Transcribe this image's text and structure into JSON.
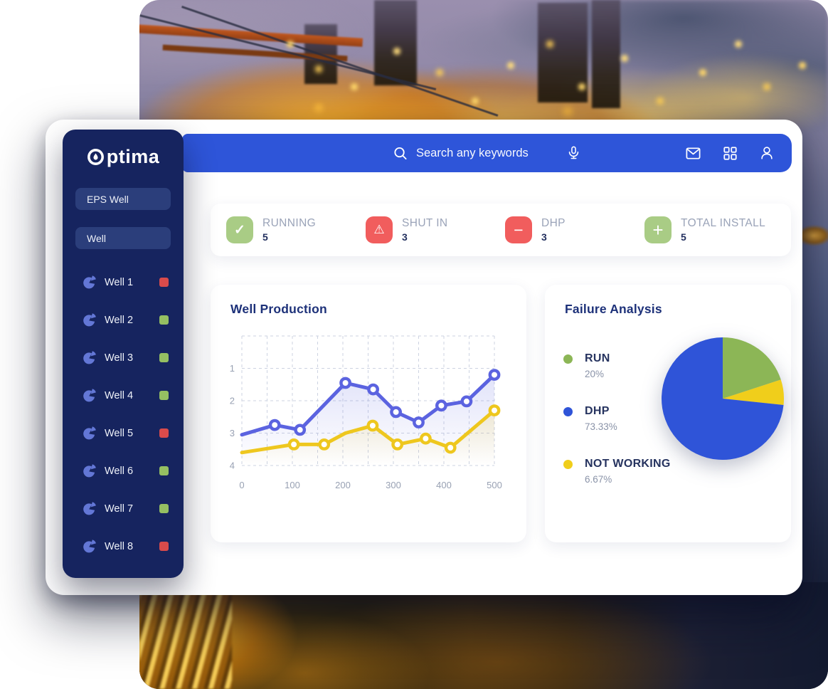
{
  "app": {
    "brand": "optima"
  },
  "topbar": {
    "search_placeholder": "Search any keywords",
    "icons": [
      "search",
      "microphone",
      "mail",
      "apps-grid",
      "profile"
    ]
  },
  "sidebar": {
    "nav": [
      {
        "label": "EPS Well"
      },
      {
        "label": "Well"
      }
    ],
    "wells": [
      {
        "label": "Well 1",
        "status": "red"
      },
      {
        "label": "Well 2",
        "status": "green"
      },
      {
        "label": "Well 3",
        "status": "green"
      },
      {
        "label": "Well 4",
        "status": "green"
      },
      {
        "label": "Well 5",
        "status": "red"
      },
      {
        "label": "Well 6",
        "status": "green"
      },
      {
        "label": "Well 7",
        "status": "green"
      },
      {
        "label": "Well 8",
        "status": "red"
      }
    ]
  },
  "stats": [
    {
      "label": "RUNNING",
      "value": "5",
      "icon": "check",
      "color": "green"
    },
    {
      "label": "SHUT IN",
      "value": "3",
      "icon": "warning",
      "color": "red"
    },
    {
      "label": "DHP",
      "value": "3",
      "icon": "minus",
      "color": "red"
    },
    {
      "label": "TOTAL INSTALL",
      "value": "5",
      "icon": "plus",
      "color": "green"
    }
  ],
  "colors": {
    "accent_blue": "#2e55d9",
    "sidebar_navy": "#16245f",
    "stat_green": "#a9cc85",
    "stat_red": "#f15d5d",
    "status_green": "#95bf62",
    "status_red": "#d94b4b",
    "line_blue": "#5b63e0",
    "line_yellow": "#eec71e",
    "pie_green": "#8cb656",
    "pie_blue": "#2f54d8",
    "pie_yellow": "#f0ce1b"
  },
  "chart_data": [
    {
      "type": "line",
      "title": "Well Production",
      "x_ticks": [
        0,
        100,
        200,
        300,
        400,
        500
      ],
      "y_ticks": [
        1,
        2,
        3,
        4
      ],
      "x_range": [
        0,
        500
      ],
      "y_range": [
        0,
        4
      ],
      "y_inverted": true,
      "grid": "dashed",
      "series": [
        {
          "name": "series-blue",
          "color": "#5b63e0",
          "points": [
            [
              0,
              3.05,
              0
            ],
            [
              65,
              2.75,
              1
            ],
            [
              115,
              2.9,
              1
            ],
            [
              205,
              1.45,
              1
            ],
            [
              260,
              1.65,
              1
            ],
            [
              305,
              2.35,
              1
            ],
            [
              350,
              2.67,
              1
            ],
            [
              395,
              2.15,
              1
            ],
            [
              445,
              2.02,
              1
            ],
            [
              500,
              1.2,
              1
            ]
          ]
        },
        {
          "name": "series-yellow",
          "color": "#eec71e",
          "points": [
            [
              0,
              3.6,
              0
            ],
            [
              103,
              3.35,
              1
            ],
            [
              163,
              3.35,
              1
            ],
            [
              205,
              3.0,
              0
            ],
            [
              259,
              2.77,
              1
            ],
            [
              308,
              3.35,
              1
            ],
            [
              364,
              3.17,
              1
            ],
            [
              413,
              3.45,
              1
            ],
            [
              500,
              2.3,
              1
            ]
          ]
        }
      ]
    },
    {
      "type": "pie",
      "title": "Failure Analysis",
      "slices": [
        {
          "label": "RUN",
          "value": 20,
          "display": "20%",
          "color": "#8cb656"
        },
        {
          "label": "DHP",
          "value": 73.33,
          "display": "73.33%",
          "color": "#2f54d8"
        },
        {
          "label": "NOT WORKING",
          "value": 6.67,
          "display": "6.67%",
          "color": "#f0ce1b"
        }
      ],
      "draw_order": [
        0,
        2,
        1
      ],
      "start_angle_deg": 0,
      "direction": "clockwise",
      "legend_position": "left"
    }
  ]
}
